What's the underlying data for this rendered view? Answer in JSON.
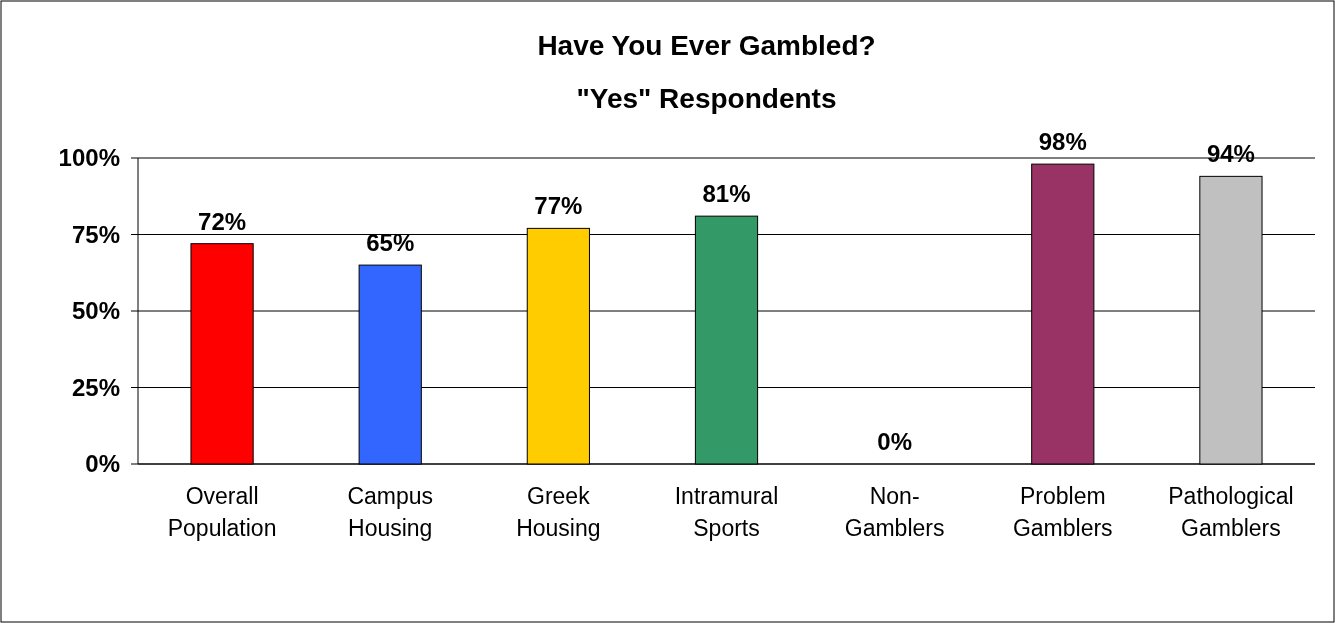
{
  "chart_data": {
    "type": "bar",
    "title": "Have You Ever Gambled?",
    "subtitle": "\"Yes\" Respondents",
    "categories": [
      "Overall Population",
      "Campus Housing",
      "Greek Housing",
      "Intramural Sports",
      "Non-Gamblers",
      "Problem Gamblers",
      "Pathological Gamblers"
    ],
    "values": [
      72,
      65,
      77,
      81,
      0,
      98,
      94
    ],
    "value_labels": [
      "72%",
      "65%",
      "77%",
      "81%",
      "0%",
      "98%",
      "94%"
    ],
    "colors": [
      "#ff0000",
      "#3366ff",
      "#ffcc00",
      "#339966",
      "#808080",
      "#993366",
      "#c0c0c0"
    ],
    "ylim": [
      0,
      100
    ],
    "yticks": [
      {
        "value": 0,
        "label": "0%"
      },
      {
        "value": 25,
        "label": "25%"
      },
      {
        "value": 50,
        "label": "50%"
      },
      {
        "value": 75,
        "label": "75%"
      },
      {
        "value": 100,
        "label": "100%"
      }
    ],
    "grid": "y"
  }
}
